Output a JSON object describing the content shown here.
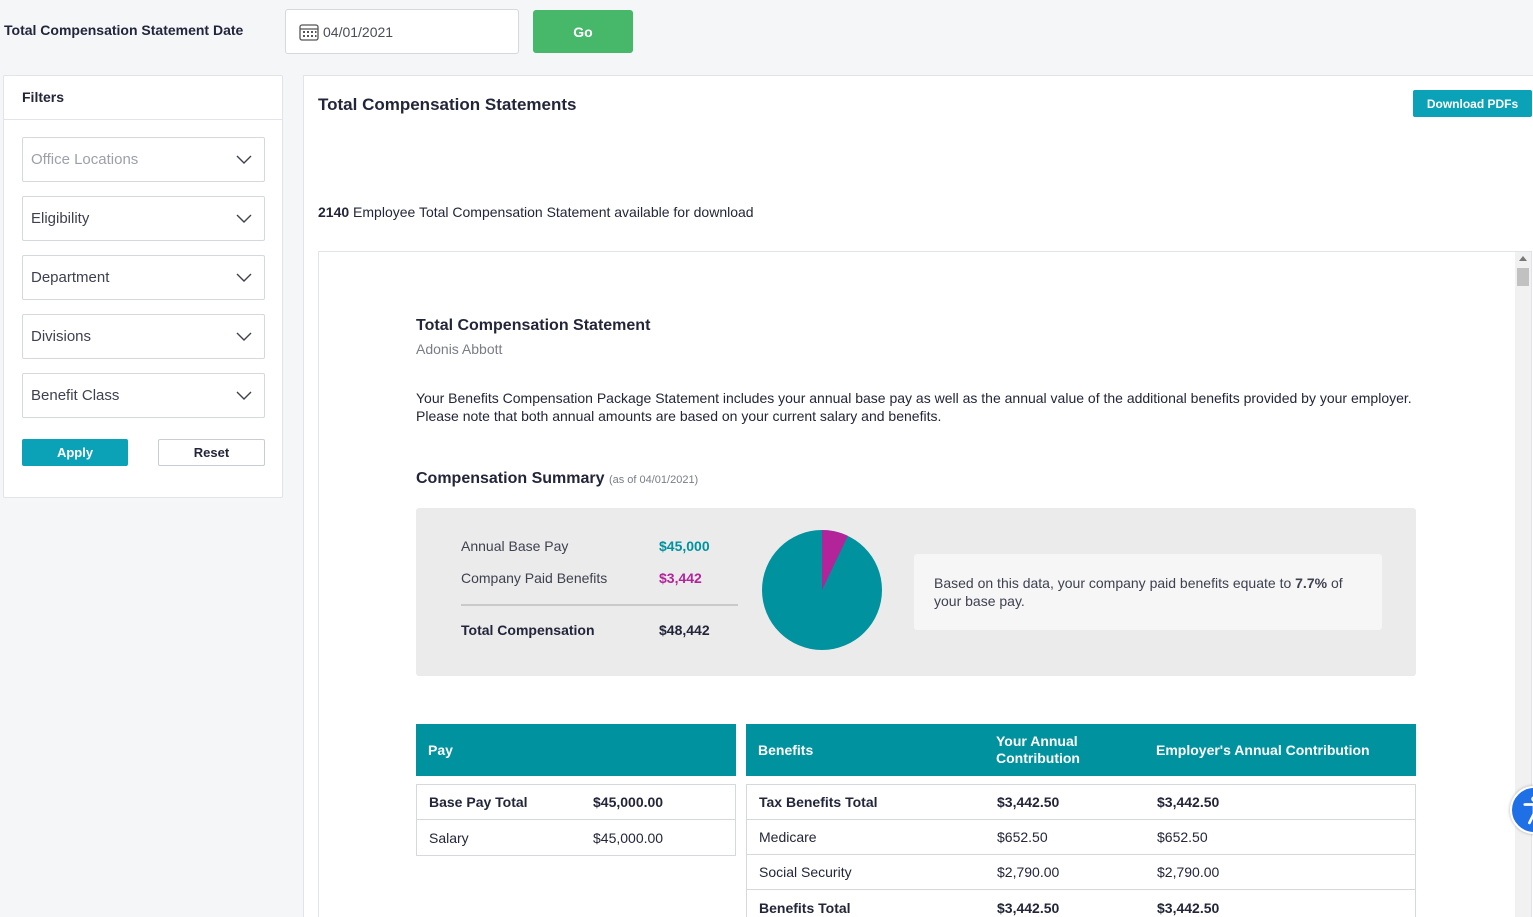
{
  "topbar": {
    "label": "Total Compensation Statement Date",
    "date_value": "04/01/2021",
    "go_label": "Go"
  },
  "filters": {
    "title": "Filters",
    "selects": [
      {
        "label": "Office Locations",
        "placeholder": true
      },
      {
        "label": "Eligibility",
        "placeholder": false
      },
      {
        "label": "Department",
        "placeholder": false
      },
      {
        "label": "Divisions",
        "placeholder": false
      },
      {
        "label": "Benefit Class",
        "placeholder": false
      }
    ],
    "apply_label": "Apply",
    "reset_label": "Reset"
  },
  "main": {
    "title": "Total Compensation Statements",
    "download_label": "Download PDFs",
    "available_count": "2140",
    "available_text": " Employee Total Compensation Statement available for download"
  },
  "statement": {
    "title": "Total Compensation Statement",
    "employee": "Adonis Abbott",
    "description": "Your Benefits Compensation Package Statement includes your annual base pay as well as the annual value of the additional benefits provided by your employer. Please note that both annual amounts are based on your current salary and benefits.",
    "summary_title": "Compensation Summary",
    "summary_asof": "(as of 04/01/2021)",
    "summary": {
      "base_label": "Annual Base Pay",
      "base_value": "$45,000",
      "benefits_label": "Company Paid Benefits",
      "benefits_value": "$3,442",
      "total_label": "Total Compensation",
      "total_value": "$48,442"
    },
    "pie": {
      "base": 45000,
      "benefits": 3442,
      "base_color": "#00929f",
      "benefits_color": "#b3249a"
    },
    "note_prefix": "Based on this data, your company paid benefits equate to ",
    "note_pct": "7.7%",
    "note_suffix": " of your base pay.",
    "pay_table": {
      "header": "Pay",
      "rows": [
        {
          "label": "Base Pay Total",
          "value": "$45,000.00"
        },
        {
          "label": "Salary",
          "value": "$45,000.00"
        }
      ]
    },
    "benefits_table": {
      "headers": [
        "Benefits",
        "Your Annual Contribution",
        "Employer's Annual Contribution"
      ],
      "rows": [
        {
          "label": "Tax Benefits Total",
          "yours": "$3,442.50",
          "employer": "$3,442.50"
        },
        {
          "label": "Medicare",
          "yours": "$652.50",
          "employer": "$652.50"
        },
        {
          "label": "Social Security",
          "yours": "$2,790.00",
          "employer": "$2,790.00"
        },
        {
          "label": "Benefits Total",
          "yours": "$3,442.50",
          "employer": "$3,442.50"
        }
      ]
    }
  },
  "colors": {
    "accent": "#0ba2b7",
    "go_green": "#47b86a",
    "teal_header": "#00929f",
    "magenta": "#b3249a"
  }
}
